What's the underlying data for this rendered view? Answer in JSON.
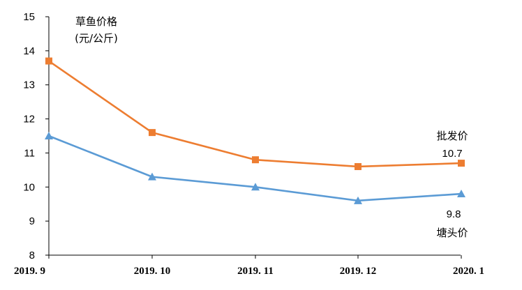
{
  "chart_data": {
    "type": "line",
    "title": "",
    "ylabel_line1": "草鱼价格",
    "ylabel_line2": "(元/公斤)",
    "xlabel": "",
    "categories": [
      "2019. 9",
      "2019. 10",
      "2019. 11",
      "2019. 12",
      "2020. 1"
    ],
    "ylim": [
      8,
      15
    ],
    "yticks": [
      8,
      9,
      10,
      11,
      12,
      13,
      14,
      15
    ],
    "grid": false,
    "series": [
      {
        "name": "批发价",
        "color": "#ED7D31",
        "marker": "square",
        "values": [
          13.7,
          11.6,
          10.8,
          10.6,
          10.7
        ],
        "end_label": "10.7"
      },
      {
        "name": "塘头价",
        "color": "#5B9BD5",
        "marker": "triangle",
        "values": [
          11.5,
          10.3,
          10.0,
          9.6,
          9.8
        ],
        "end_label": "9.8"
      }
    ]
  }
}
